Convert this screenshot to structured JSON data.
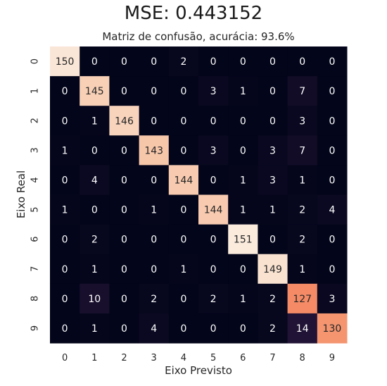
{
  "figure": {
    "suptitle": "MSE: 0.443152"
  },
  "chart_data": {
    "type": "heatmap",
    "title": "Matriz de confusão, acurácia: 93.6%",
    "xlabel": "Eixo Previsto",
    "ylabel": "Eixo Real",
    "x_categories": [
      "0",
      "1",
      "2",
      "3",
      "4",
      "5",
      "6",
      "7",
      "8",
      "9"
    ],
    "y_categories": [
      "0",
      "1",
      "2",
      "3",
      "4",
      "5",
      "6",
      "7",
      "8",
      "9"
    ],
    "values": [
      [
        150,
        0,
        0,
        0,
        2,
        0,
        0,
        0,
        0,
        0
      ],
      [
        0,
        145,
        0,
        0,
        0,
        3,
        1,
        0,
        7,
        0
      ],
      [
        0,
        1,
        146,
        0,
        0,
        0,
        0,
        0,
        3,
        0
      ],
      [
        1,
        0,
        0,
        143,
        0,
        3,
        0,
        3,
        7,
        0
      ],
      [
        0,
        4,
        0,
        0,
        144,
        0,
        1,
        3,
        1,
        0
      ],
      [
        1,
        0,
        0,
        1,
        0,
        144,
        1,
        1,
        2,
        4
      ],
      [
        0,
        2,
        0,
        0,
        0,
        0,
        151,
        0,
        2,
        0
      ],
      [
        0,
        1,
        0,
        0,
        1,
        0,
        0,
        149,
        1,
        0
      ],
      [
        0,
        10,
        0,
        2,
        0,
        2,
        1,
        2,
        127,
        3
      ],
      [
        0,
        1,
        0,
        4,
        0,
        0,
        0,
        2,
        14,
        130
      ]
    ],
    "colormap": "rocket",
    "colorbar": false,
    "annotations": true,
    "grid": false
  }
}
